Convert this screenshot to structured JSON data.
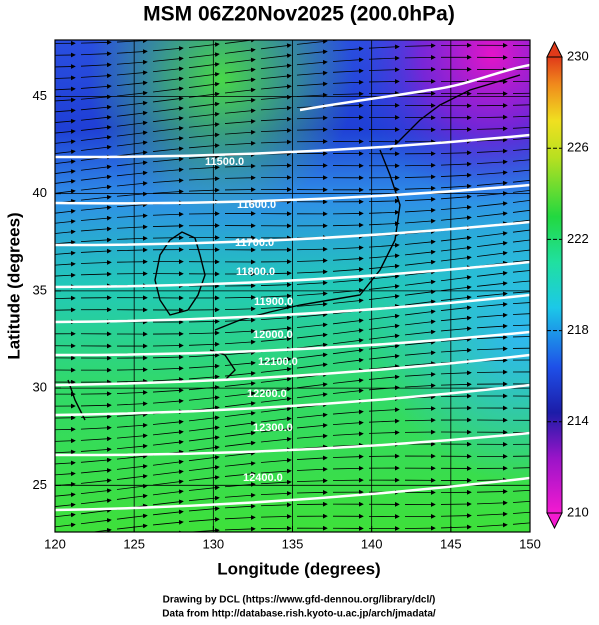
{
  "chart_data": {
    "type": "contour_map",
    "title": "MSM 06Z20Nov2025 (200.0hPa)",
    "x_label": "Longitude (degrees)",
    "y_label": "Latitude  (degrees)",
    "xlim": [
      120,
      150
    ],
    "ylim": [
      22.6,
      47.9
    ],
    "xticks": [
      120,
      125,
      130,
      135,
      140,
      145,
      150
    ],
    "yticks": [
      25,
      30,
      35,
      40,
      45
    ],
    "grid": true,
    "contour_levels": [
      {
        "value": 11500,
        "label": "11500.0"
      },
      {
        "value": 11600,
        "label": "11600.0"
      },
      {
        "value": 11700,
        "label": "11700.0"
      },
      {
        "value": 11800,
        "label": "11800.0"
      },
      {
        "value": 11900,
        "label": "11900.0"
      },
      {
        "value": 12000,
        "label": "12000.0"
      },
      {
        "value": 12100,
        "label": "12100.0"
      },
      {
        "value": 12200,
        "label": "12200.0"
      },
      {
        "value": 12300,
        "label": "12300.0"
      },
      {
        "value": 12400,
        "label": "12400.0"
      }
    ],
    "colorbar": {
      "lim": [
        210,
        230
      ],
      "ticks": [
        210,
        214,
        218,
        222,
        226,
        230
      ]
    }
  },
  "footer": [
    "Drawing by DCL (https://www.gfd-dennou.org/library/dcl/)",
    "Data from http://database.rish.kyoto-u.ac.jp/arch/jmadata/"
  ]
}
